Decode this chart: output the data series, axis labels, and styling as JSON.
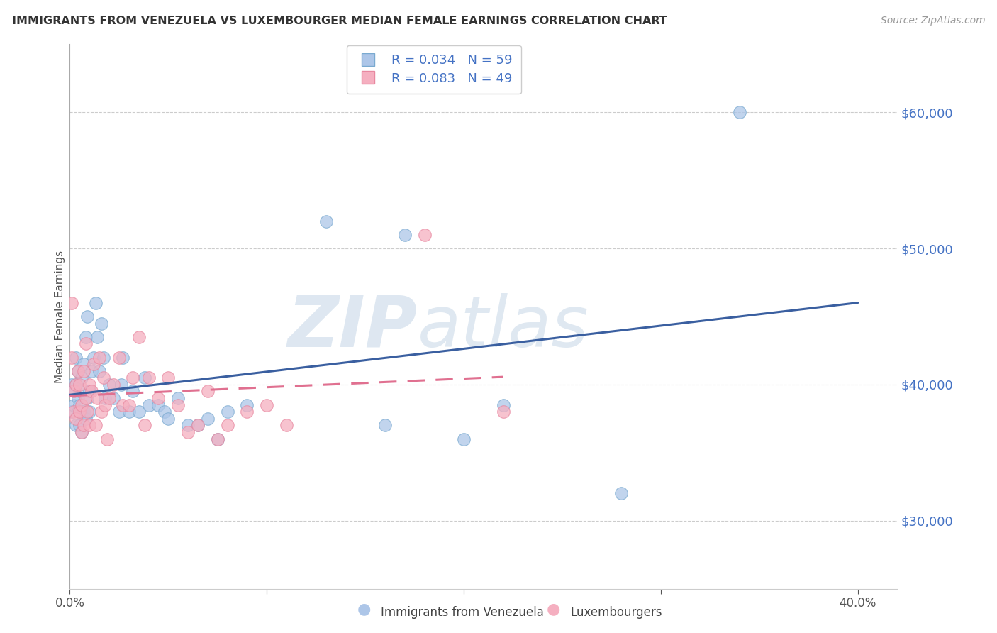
{
  "title": "IMMIGRANTS FROM VENEZUELA VS LUXEMBOURGER MEDIAN FEMALE EARNINGS CORRELATION CHART",
  "source": "Source: ZipAtlas.com",
  "ylabel": "Median Female Earnings",
  "xlim": [
    0.0,
    0.42
  ],
  "ylim": [
    25000,
    65000
  ],
  "yticks": [
    30000,
    40000,
    50000,
    60000
  ],
  "xticks": [
    0.0,
    0.1,
    0.2,
    0.3,
    0.4
  ],
  "watermark_zip": "ZIP",
  "watermark_atlas": "atlas",
  "series1_color": "#adc6e8",
  "series2_color": "#f5afc0",
  "series1_edge": "#7aaad0",
  "series2_edge": "#e888a0",
  "series1_label": "Immigrants from Venezuela",
  "series2_label": "Luxembourgers",
  "series1_R": "R = 0.034",
  "series1_N": "N = 59",
  "series2_R": "R = 0.083",
  "series2_N": "N = 49",
  "series1_line_color": "#3a5fa0",
  "series2_line_color": "#e07090",
  "series1_x": [
    0.001,
    0.001,
    0.002,
    0.002,
    0.003,
    0.003,
    0.003,
    0.004,
    0.004,
    0.004,
    0.005,
    0.005,
    0.005,
    0.006,
    0.006,
    0.006,
    0.007,
    0.007,
    0.008,
    0.008,
    0.009,
    0.009,
    0.01,
    0.01,
    0.011,
    0.012,
    0.013,
    0.014,
    0.015,
    0.016,
    0.017,
    0.018,
    0.02,
    0.022,
    0.025,
    0.026,
    0.027,
    0.03,
    0.032,
    0.035,
    0.038,
    0.04,
    0.045,
    0.048,
    0.05,
    0.055,
    0.06,
    0.065,
    0.07,
    0.075,
    0.08,
    0.09,
    0.13,
    0.16,
    0.17,
    0.2,
    0.22,
    0.28,
    0.34
  ],
  "series1_y": [
    38000,
    40000,
    38500,
    39500,
    37000,
    40000,
    42000,
    38000,
    39000,
    41000,
    38500,
    37000,
    39500,
    38000,
    40500,
    36500,
    38000,
    41500,
    37500,
    43500,
    45000,
    39000,
    38000,
    39500,
    41000,
    42000,
    46000,
    43500,
    41000,
    44500,
    42000,
    39000,
    40000,
    39000,
    38000,
    40000,
    42000,
    38000,
    39500,
    38000,
    40500,
    38500,
    38500,
    38000,
    37500,
    39000,
    37000,
    37000,
    37500,
    36000,
    38000,
    38500,
    52000,
    37000,
    51000,
    36000,
    38500,
    32000,
    60000
  ],
  "series2_x": [
    0.001,
    0.001,
    0.002,
    0.002,
    0.003,
    0.003,
    0.004,
    0.005,
    0.005,
    0.006,
    0.006,
    0.007,
    0.007,
    0.008,
    0.008,
    0.009,
    0.01,
    0.01,
    0.011,
    0.012,
    0.013,
    0.014,
    0.015,
    0.016,
    0.017,
    0.018,
    0.019,
    0.02,
    0.022,
    0.025,
    0.027,
    0.03,
    0.032,
    0.035,
    0.038,
    0.04,
    0.045,
    0.05,
    0.055,
    0.06,
    0.065,
    0.07,
    0.075,
    0.08,
    0.09,
    0.1,
    0.11,
    0.18,
    0.22
  ],
  "series2_y": [
    46000,
    42000,
    38000,
    39500,
    37500,
    40000,
    41000,
    38000,
    40000,
    38500,
    36500,
    37000,
    41000,
    39000,
    43000,
    38000,
    37000,
    40000,
    39500,
    41500,
    37000,
    39000,
    42000,
    38000,
    40500,
    38500,
    36000,
    39000,
    40000,
    42000,
    38500,
    38500,
    40500,
    43500,
    37000,
    40500,
    39000,
    40500,
    38500,
    36500,
    37000,
    39500,
    36000,
    37000,
    38000,
    38500,
    37000,
    51000,
    38000
  ]
}
